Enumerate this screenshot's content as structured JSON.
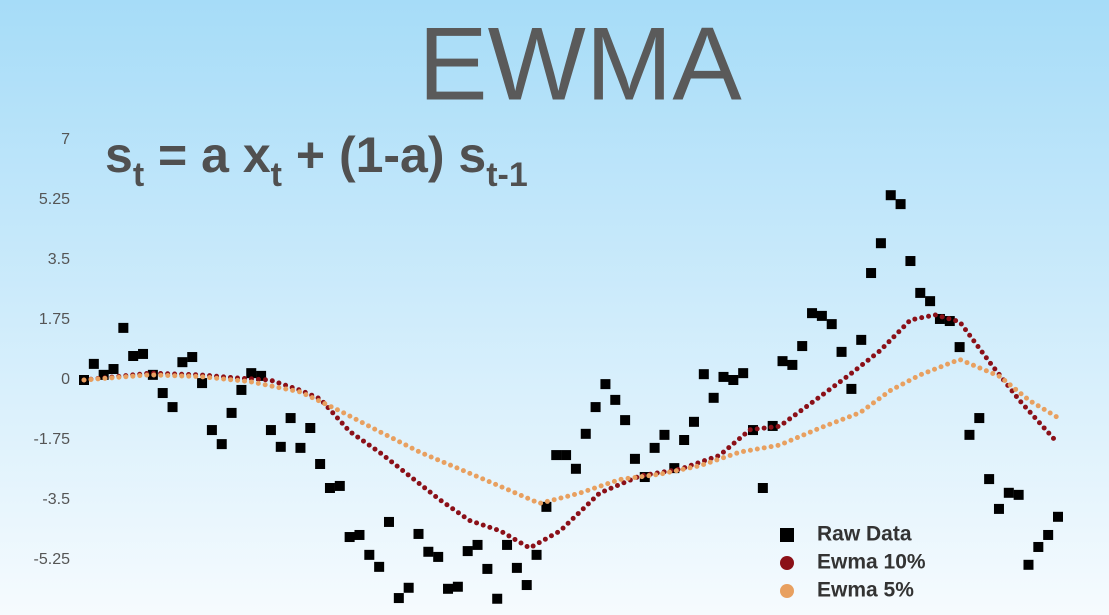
{
  "chart_data": {
    "type": "scatter",
    "title": "EWMA",
    "formula": [
      {
        "text": "s"
      },
      {
        "text": "t",
        "sub": true
      },
      {
        "text": " = a x"
      },
      {
        "text": "t",
        "sub": true
      },
      {
        "text": " + (1-a) s"
      },
      {
        "text": "t-1",
        "sub": true
      }
    ],
    "ylim": [
      -7,
      7
    ],
    "yticks": [
      7,
      5.25,
      3.5,
      1.75,
      0,
      -1.75,
      -3.5,
      -5.25
    ],
    "xlim": [
      0,
      99
    ],
    "legend": "bottom-right",
    "series": [
      {
        "name": "Raw Data",
        "color": "#000000",
        "marker": "square",
        "values": [
          0,
          0.47,
          0.15,
          0.32,
          1.52,
          0.7,
          0.76,
          0.15,
          -0.38,
          -0.79,
          0.52,
          0.67,
          -0.09,
          -1.46,
          -1.87,
          -0.96,
          -0.29,
          0.2,
          0.12,
          -1.46,
          -1.95,
          -1.11,
          -1.98,
          -1.4,
          -2.45,
          -3.15,
          -3.09,
          -4.58,
          -4.52,
          -5.1,
          -5.45,
          -4.14,
          -6.36,
          -6.06,
          -4.49,
          -5.01,
          -5.16,
          -6.09,
          -6.03,
          -4.99,
          -4.81,
          -5.51,
          -6.38,
          -4.81,
          -5.48,
          -5.98,
          -5.1,
          -3.7,
          -2.19,
          -2.19,
          -2.59,
          -1.57,
          -0.79,
          -0.12,
          -0.58,
          -1.17,
          -2.3,
          -2.83,
          -1.98,
          -1.6,
          -2.57,
          -1.75,
          -1.22,
          0.17,
          -0.52,
          0.09,
          0,
          0.2,
          -1.46,
          -3.15,
          -1.34,
          0.55,
          0.44,
          0.99,
          1.95,
          1.87,
          1.63,
          0.82,
          -0.26,
          1.17,
          3.12,
          3.99,
          5.39,
          5.13,
          3.47,
          2.54,
          2.3,
          1.78,
          1.72,
          0.96,
          -1.6,
          -1.11,
          -2.89,
          -3.76,
          -3.29,
          -3.35,
          -5.39,
          -4.87,
          -4.52,
          -3.99
        ]
      },
      {
        "name": "Ewma 10%",
        "color": "#8b1018",
        "marker": "dot",
        "x": [
          0,
          6.7,
          11.8,
          15.9,
          18.9,
          22,
          24,
          27,
          30,
          33.1,
          36.2,
          39.2,
          42.3,
          45.3,
          48.4,
          52.4,
          56.5,
          60.6,
          64.6,
          67.7,
          70.7,
          73.8,
          77.8,
          80.9,
          84,
          86.5,
          89,
          92.1,
          95.1,
          99
        ],
        "values": [
          0,
          0.2,
          0.15,
          0.05,
          0,
          -0.3,
          -0.55,
          -1.5,
          -2.1,
          -2.8,
          -3.5,
          -4.1,
          -4.4,
          -4.9,
          -4.4,
          -3.3,
          -2.8,
          -2.6,
          -2.2,
          -1.45,
          -1.35,
          -0.7,
          0.15,
          0.85,
          1.75,
          1.9,
          1.7,
          0.5,
          -0.6,
          -1.85
        ]
      },
      {
        "name": "Ewma 5%",
        "color": "#e8a060",
        "marker": "dot",
        "x": [
          0,
          6.7,
          11.8,
          16.9,
          22,
          26,
          30,
          34.1,
          38.2,
          42.3,
          46.3,
          50.4,
          54.5,
          58.5,
          62.6,
          66.7,
          70.7,
          74.8,
          78.9,
          82,
          85,
          89,
          93.1,
          96.1,
          99
        ],
        "values": [
          0,
          0.15,
          0.1,
          -0.05,
          -0.35,
          -0.9,
          -1.5,
          -2.1,
          -2.6,
          -3.1,
          -3.6,
          -3.3,
          -2.9,
          -2.75,
          -2.5,
          -2.1,
          -1.9,
          -1.4,
          -0.95,
          -0.3,
          0.15,
          0.6,
          0.1,
          -0.6,
          -1.1
        ]
      }
    ]
  }
}
